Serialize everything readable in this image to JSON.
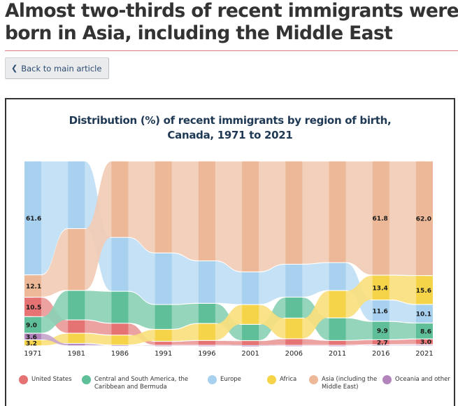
{
  "page": {
    "headline": "Almost two-thirds of recent immigrants were born in Asia, including the Middle East",
    "back_button": {
      "label": "Back to main article",
      "icon": "chevron-left-icon"
    }
  },
  "chart_data": {
    "type": "area",
    "subtype": "ranked-stream",
    "title": "Distribution (%) of recent immigrants by region of birth, Canada, 1971 to 2021",
    "title_lines": [
      "Distribution (%) of recent immigrants by region of birth,",
      "Canada, 1971 to 2021"
    ],
    "xlabel": "",
    "ylabel": "",
    "ylim": [
      0,
      100
    ],
    "grid": false,
    "legend_position": "bottom",
    "categories": [
      "1971",
      "1981",
      "1986",
      "1991",
      "1996",
      "2001",
      "2006",
      "2011",
      "2016",
      "2021"
    ],
    "series": [
      {
        "name": "United States",
        "color": "#e57373",
        "values": [
          10.5,
          7.2,
          6.4,
          2.1,
          2.6,
          2.6,
          3.5,
          2.6,
          2.7,
          3.0
        ]
      },
      {
        "name": "Central and South America, the Caribbean and Bermuda",
        "color": "#5ebf98",
        "values": [
          9.0,
          16.0,
          17.3,
          13.4,
          10.9,
          8.8,
          11.3,
          12.2,
          9.9,
          8.6
        ]
      },
      {
        "name": "Europe",
        "color": "#a8d1f0",
        "values": [
          61.6,
          36.6,
          29.2,
          27.9,
          23.0,
          17.7,
          17.8,
          15.1,
          11.6,
          10.1
        ]
      },
      {
        "name": "Africa",
        "color": "#f5d44a",
        "values": [
          3.2,
          5.5,
          5.4,
          6.5,
          9.2,
          10.7,
          11.2,
          14.8,
          13.4,
          15.6
        ]
      },
      {
        "name": "Asia (including the Middle East)",
        "color": "#ecb898",
        "values": [
          12.1,
          33.5,
          41.4,
          49.7,
          54.1,
          60.0,
          55.8,
          55.0,
          61.8,
          62.0
        ]
      },
      {
        "name": "Oceania and other",
        "color": "#b184bb",
        "values": [
          3.6,
          1.3,
          0.4,
          0.3,
          0.3,
          0.2,
          0.3,
          0.3,
          0.6,
          0.7
        ]
      }
    ],
    "data_labels": [
      {
        "year": "1971",
        "series": "Europe",
        "text": "61.6"
      },
      {
        "year": "1971",
        "series": "Asia (including the Middle East)",
        "text": "12.1"
      },
      {
        "year": "1971",
        "series": "United States",
        "text": "10.5"
      },
      {
        "year": "1971",
        "series": "Central and South America, the Caribbean and Bermuda",
        "text": "9.0"
      },
      {
        "year": "1971",
        "series": "Oceania and other",
        "text": "3.6"
      },
      {
        "year": "1971",
        "series": "Africa",
        "text": "3.2"
      },
      {
        "year": "2016",
        "series": "Asia (including the Middle East)",
        "text": "61.8"
      },
      {
        "year": "2016",
        "series": "Africa",
        "text": "13.4"
      },
      {
        "year": "2016",
        "series": "Europe",
        "text": "11.6"
      },
      {
        "year": "2016",
        "series": "Central and South America, the Caribbean and Bermuda",
        "text": "9.9"
      },
      {
        "year": "2016",
        "series": "United States",
        "text": "2.7"
      },
      {
        "year": "2021",
        "series": "Asia (including the Middle East)",
        "text": "62.0"
      },
      {
        "year": "2021",
        "series": "Africa",
        "text": "15.6"
      },
      {
        "year": "2021",
        "series": "Europe",
        "text": "10.1"
      },
      {
        "year": "2021",
        "series": "Central and South America, the Caribbean and Bermuda",
        "text": "8.6"
      },
      {
        "year": "2021",
        "series": "United States",
        "text": "3.0"
      }
    ]
  },
  "legend": [
    {
      "label_lines": [
        "United States"
      ],
      "color": "#e57373"
    },
    {
      "label_lines": [
        "Central and South America, the",
        "Caribbean and Bermuda"
      ],
      "color": "#5ebf98"
    },
    {
      "label_lines": [
        "Europe"
      ],
      "color": "#a8d1f0"
    },
    {
      "label_lines": [
        "Africa"
      ],
      "color": "#f5d44a"
    },
    {
      "label_lines": [
        "Asia (including the",
        "Middle East)"
      ],
      "color": "#ecb898"
    },
    {
      "label_lines": [
        "Oceania and other"
      ],
      "color": "#b184bb"
    }
  ]
}
